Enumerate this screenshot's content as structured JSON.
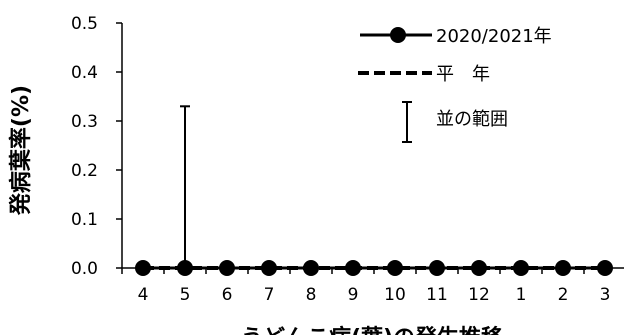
{
  "chart_data": {
    "type": "line",
    "title": "",
    "xlabel": "うどんこ病(葉)の発生推移",
    "ylabel": "発病葉率(%)",
    "categories": [
      "4",
      "5",
      "6",
      "7",
      "8",
      "9",
      "10",
      "11",
      "12",
      "1",
      "2",
      "3"
    ],
    "yticks": [
      "0.0",
      "0.1",
      "0.2",
      "0.3",
      "0.4",
      "0.5"
    ],
    "ylim": [
      0,
      0.5
    ],
    "grid": false,
    "legend_position": "top-right",
    "series": [
      {
        "name": "2020/2021年",
        "values": [
          0,
          0,
          0,
          0,
          0,
          0,
          0,
          0,
          0,
          0,
          0,
          0
        ],
        "style": "solid-circle"
      },
      {
        "name": "平　年",
        "values": [
          0,
          0,
          0,
          0,
          0,
          0,
          0,
          0,
          0,
          0,
          0,
          0
        ],
        "style": "dashed"
      }
    ],
    "range": {
      "name": "並の範囲",
      "low": [
        0,
        0,
        0,
        0,
        0,
        0,
        0,
        0,
        0,
        0,
        0,
        0
      ],
      "high": [
        0,
        0.33,
        0,
        0,
        0,
        0,
        0,
        0,
        0,
        0,
        0,
        0
      ]
    },
    "colors": {
      "line": "#000000",
      "background": "#ffffff"
    }
  }
}
